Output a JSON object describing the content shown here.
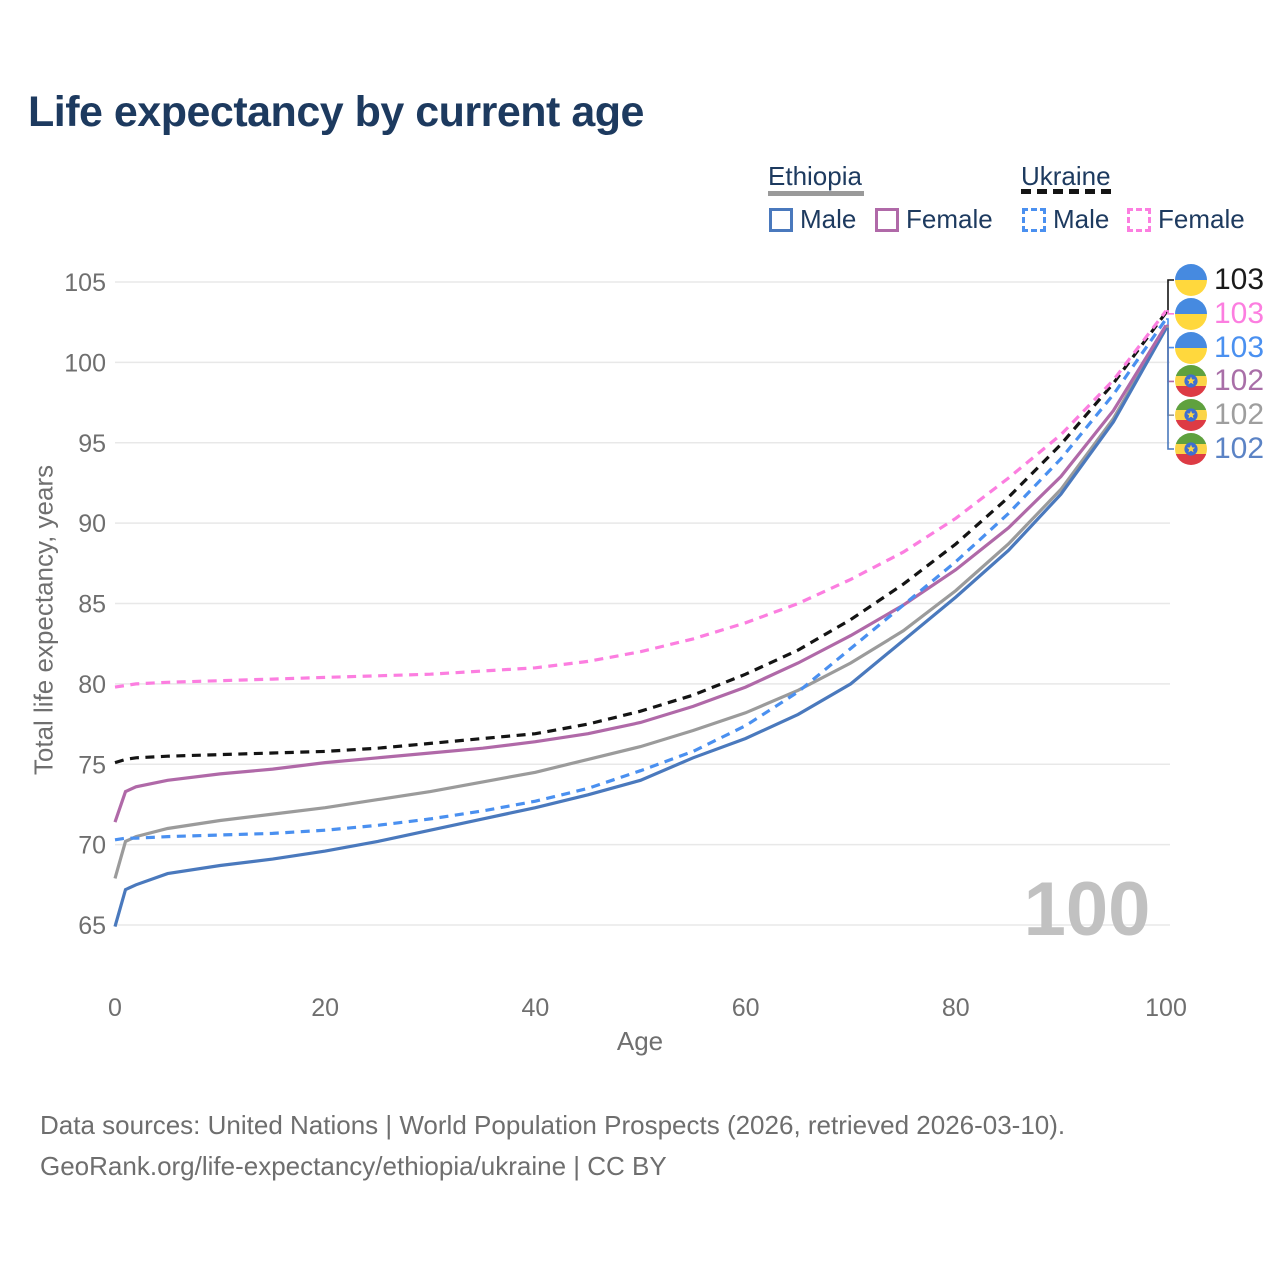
{
  "title": "Life expectancy by current age",
  "watermark": "100",
  "legend": {
    "groups": [
      {
        "country": "Ethiopia",
        "line_style": "solid",
        "underline_color": "#9a9a9a",
        "items": [
          {
            "label": "Male",
            "color": "#4a79bd"
          },
          {
            "label": "Female",
            "color": "#b069a8"
          }
        ]
      },
      {
        "country": "Ukraine",
        "line_style": "dashed",
        "underline_color": "#141414",
        "items": [
          {
            "label": "Male",
            "color": "#4a90f0"
          },
          {
            "label": "Female",
            "color": "#fc7ee0"
          }
        ]
      }
    ]
  },
  "chart_data": {
    "type": "line",
    "title": "Life expectancy by current age",
    "xlabel": "Age",
    "ylabel": "Total life expectancy, years",
    "xlim": [
      0,
      100
    ],
    "ylim": [
      65,
      105
    ],
    "xticks": [
      0,
      20,
      40,
      60,
      80,
      100
    ],
    "yticks": [
      65,
      70,
      75,
      80,
      85,
      90,
      95,
      100,
      105
    ],
    "grid": "horizontal",
    "x": [
      0,
      1,
      2,
      5,
      10,
      15,
      20,
      25,
      30,
      35,
      40,
      45,
      50,
      55,
      60,
      65,
      70,
      75,
      80,
      85,
      90,
      95,
      100
    ],
    "series": [
      {
        "name": "Ethiopia",
        "country": "Ethiopia",
        "sex": "Both",
        "color": "#9b9b9b",
        "dash": false,
        "values": [
          67.9,
          70.2,
          70.5,
          71.0,
          71.5,
          71.9,
          72.3,
          72.8,
          73.3,
          73.9,
          74.5,
          75.3,
          76.1,
          77.1,
          78.2,
          79.6,
          81.3,
          83.3,
          85.8,
          88.7,
          92.1,
          96.5,
          102.2
        ]
      },
      {
        "name": "Ethiopia Male",
        "country": "Ethiopia",
        "sex": "Male",
        "color": "#4a79bd",
        "dash": false,
        "values": [
          64.9,
          67.2,
          67.5,
          68.2,
          68.7,
          69.1,
          69.6,
          70.2,
          70.9,
          71.6,
          72.3,
          73.1,
          74.0,
          75.4,
          76.6,
          78.1,
          80.0,
          82.7,
          85.4,
          88.3,
          91.8,
          96.3,
          102.1
        ]
      },
      {
        "name": "Ethiopia Female",
        "country": "Ethiopia",
        "sex": "Female",
        "color": "#b069a8",
        "dash": false,
        "values": [
          71.4,
          73.3,
          73.6,
          74.0,
          74.4,
          74.7,
          75.1,
          75.4,
          75.7,
          76.0,
          76.4,
          76.9,
          77.6,
          78.6,
          79.8,
          81.3,
          83.0,
          84.9,
          87.1,
          89.7,
          92.9,
          97.0,
          102.3
        ]
      },
      {
        "name": "Ukraine",
        "country": "Ukraine",
        "sex": "Both",
        "color": "#141414",
        "dash": true,
        "values": [
          75.1,
          75.3,
          75.4,
          75.5,
          75.6,
          75.7,
          75.8,
          76.0,
          76.3,
          76.6,
          76.9,
          77.5,
          78.3,
          79.3,
          80.6,
          82.1,
          84.0,
          86.2,
          88.7,
          91.6,
          94.9,
          98.7,
          103.1
        ]
      },
      {
        "name": "Ukraine Male",
        "country": "Ukraine",
        "sex": "Male",
        "color": "#4a90f0",
        "dash": true,
        "values": [
          70.3,
          70.4,
          70.4,
          70.5,
          70.6,
          70.7,
          70.9,
          71.2,
          71.6,
          72.1,
          72.7,
          73.5,
          74.6,
          75.8,
          77.4,
          79.5,
          82.2,
          84.9,
          87.6,
          90.6,
          94.0,
          98.0,
          102.7
        ]
      },
      {
        "name": "Ukraine Female",
        "country": "Ukraine",
        "sex": "Female",
        "color": "#fc7ee0",
        "dash": true,
        "values": [
          79.8,
          79.9,
          80.0,
          80.1,
          80.2,
          80.3,
          80.4,
          80.5,
          80.6,
          80.8,
          81.0,
          81.4,
          82.0,
          82.8,
          83.8,
          85.0,
          86.5,
          88.2,
          90.3,
          92.8,
          95.5,
          98.9,
          103.2
        ]
      }
    ],
    "legend_position": "top-right"
  },
  "rank_list": [
    {
      "flag": "ukraine",
      "series": "Ukraine",
      "label": "103",
      "color": "#1a1a1a"
    },
    {
      "flag": "ukraine",
      "series": "Ukraine Female",
      "label": "103",
      "color": "#fc7ee0"
    },
    {
      "flag": "ukraine",
      "series": "Ukraine Male",
      "label": "103",
      "color": "#4a90f0"
    },
    {
      "flag": "ethiopia",
      "series": "Ethiopia Female",
      "label": "102",
      "color": "#a96fa8"
    },
    {
      "flag": "ethiopia",
      "series": "Ethiopia",
      "label": "102",
      "color": "#9e9e9e"
    },
    {
      "flag": "ethiopia",
      "series": "Ethiopia Male",
      "label": "102",
      "color": "#5b83c5"
    }
  ],
  "footer": {
    "line1": "Data sources: United Nations | World Population Prospects (2026, retrieved 2026-03-10).",
    "line2": "GeoRank.org/life-expectancy/ethiopia/ukraine | CC BY"
  }
}
